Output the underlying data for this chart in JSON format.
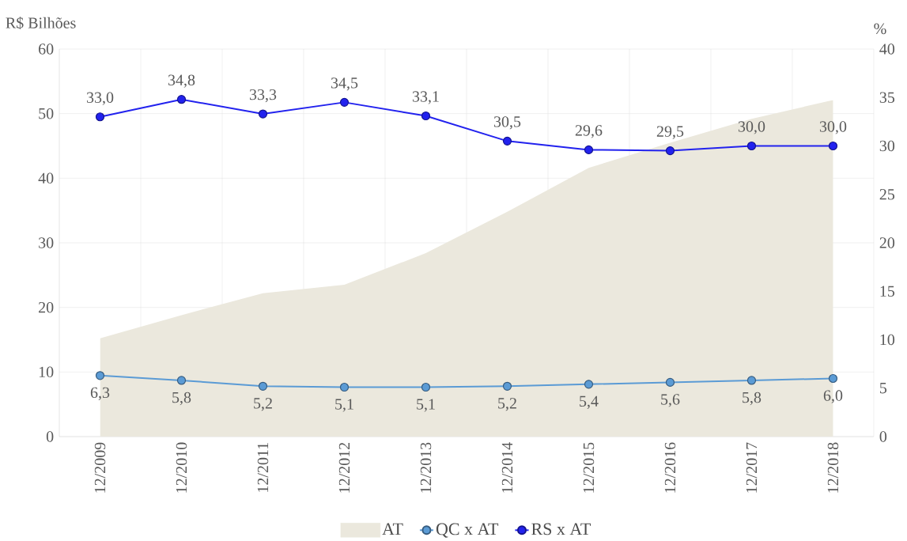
{
  "chart_data": {
    "type": "line",
    "categories": [
      "12/2009",
      "12/2010",
      "12/2011",
      "12/2012",
      "12/2013",
      "12/2014",
      "12/2015",
      "12/2016",
      "12/2017",
      "12/2018"
    ],
    "ylabel": "R$ Bilhões",
    "y2label": "%",
    "ylim": [
      0,
      60
    ],
    "yticks": [
      0,
      10,
      20,
      30,
      40,
      50,
      60
    ],
    "y2lim": [
      0,
      40
    ],
    "y2ticks": [
      0,
      5,
      10,
      15,
      20,
      25,
      30,
      35,
      40
    ],
    "grid": true,
    "legend": "bottom",
    "marker": "circle",
    "series": [
      {
        "name": "AT",
        "type": "area",
        "marker": "none",
        "color": "#ebe8dd",
        "values": [
          15.2,
          18.8,
          22.2,
          23.5,
          28.4,
          34.8,
          41.6,
          45.5,
          49.2,
          52.1
        ]
      },
      {
        "name": "QC x AT",
        "axis": "y2",
        "color": "#5b9bd5",
        "values": [
          6.3,
          5.8,
          5.2,
          5.1,
          5.1,
          5.2,
          5.4,
          5.6,
          5.8,
          6.0
        ],
        "value_labels": [
          "6,3",
          "5,8",
          "5,2",
          "5,1",
          "5,1",
          "5,2",
          "5,4",
          "5,6",
          "5,8",
          "6,0"
        ]
      },
      {
        "name": "RS x AT",
        "axis": "y2",
        "color": "#2222ee",
        "values": [
          33.0,
          34.8,
          33.3,
          34.5,
          33.1,
          30.5,
          29.6,
          29.5,
          30.0,
          30.0
        ],
        "value_labels": [
          "33,0",
          "34,8",
          "33,3",
          "34,5",
          "33,1",
          "30,5",
          "29,6",
          "29,5",
          "30,0",
          "30,0"
        ]
      }
    ]
  }
}
